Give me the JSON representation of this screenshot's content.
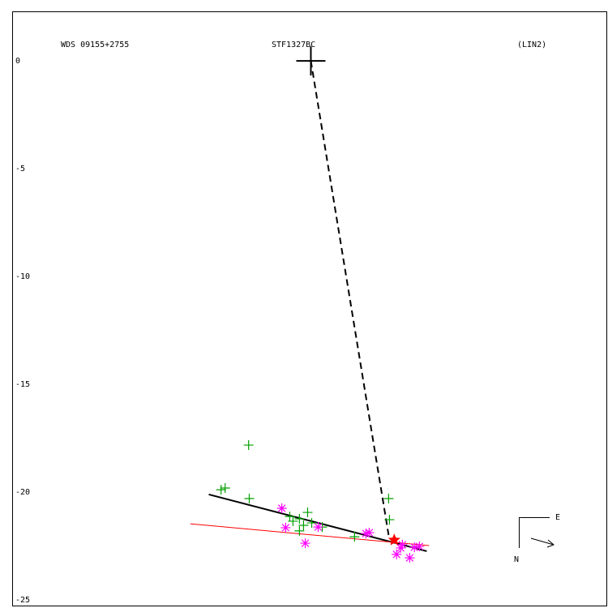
{
  "chart_data": {
    "type": "scatter",
    "title": "WDS 09155+2755",
    "subtitle": "STF1327BC",
    "annotation": "(LIN2)",
    "compass_labels": [
      "E",
      "N"
    ],
    "xlim": [
      -13.87,
      13.76
    ],
    "ylim": [
      -25.3,
      2.26
    ],
    "yticks": [
      0,
      -5,
      -10,
      -15,
      -20,
      -25
    ],
    "primary": {
      "color": "#000000",
      "x": 0,
      "y": 0
    },
    "series": [
      {
        "color": "#00a000",
        "marker": "plus",
        "x": [
          -2.89,
          -4.17,
          -3.98,
          -2.86,
          3.61,
          3.65,
          -0.53,
          -0.15,
          0.04,
          -0.83,
          -0.34,
          -0.98,
          0.53,
          2.03,
          -0.53
        ],
        "y": [
          -17.82,
          -19.89,
          -19.81,
          -20.3,
          -20.3,
          -21.28,
          -21.24,
          -20.94,
          -21.43,
          -21.35,
          -21.54,
          -21.13,
          -21.62,
          -22.07,
          -21.8
        ]
      },
      {
        "color": "#ff00ff",
        "marker": "asterisk",
        "x": [
          -1.35,
          -1.17,
          -0.26,
          0.34,
          2.56,
          2.71,
          3.98,
          4.59,
          4.25,
          4.81,
          5.04,
          4.17
        ],
        "y": [
          -20.75,
          -21.65,
          -22.37,
          -21.62,
          -21.92,
          -21.88,
          -22.89,
          -23.05,
          -22.44,
          -22.56,
          -22.52,
          -22.59
        ]
      },
      {
        "color": "#ff0000",
        "marker": "star",
        "x": [
          3.87
        ],
        "y": [
          -22.22
        ]
      }
    ],
    "lines": [
      {
        "color": "#000000",
        "style": "solid",
        "width": 2,
        "x": [
          -4.74,
          5.38
        ],
        "y": [
          -20.11,
          -22.74
        ]
      },
      {
        "color": "#ff0000",
        "style": "solid",
        "width": 1,
        "x": [
          -5.6,
          5.49
        ],
        "y": [
          -21.47,
          -22.48
        ]
      },
      {
        "color": "#000000",
        "style": "dashed",
        "width": 2,
        "x": [
          0,
          3.61
        ],
        "y": [
          0,
          -21.99
        ]
      }
    ]
  }
}
